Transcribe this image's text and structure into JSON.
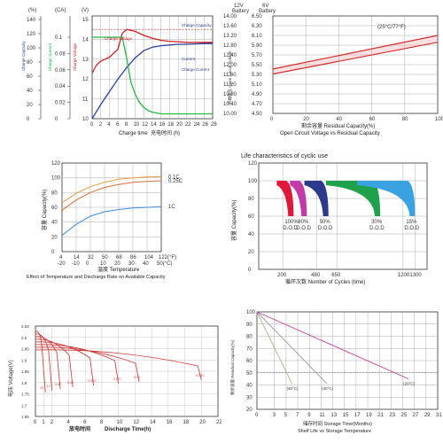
{
  "chart_data": [
    {
      "id": "charge",
      "type": "line",
      "x_ticks": [
        "0",
        "2",
        "4",
        "6",
        "8",
        "10",
        "12",
        "14",
        "16",
        "18",
        "20",
        "22",
        "24",
        "26",
        "28"
      ],
      "xlabel": "Charge time",
      "xlabel_cn": "充电时间 (h)",
      "units": [
        "(%)",
        "(CA)",
        "(V)"
      ],
      "y_pct_ticks": [
        "140",
        "120",
        "100",
        "80",
        "60",
        "40",
        "20",
        "0"
      ],
      "y_ca_ticks": [
        "0.1",
        "0.08",
        "0.06",
        "0.04",
        "0.02",
        "0"
      ],
      "y_v_ticks": [
        "15",
        "14",
        "13",
        "12",
        "11",
        "10"
      ],
      "side_labels": [
        "Charge Capacity",
        "Charge Current",
        "Charge Voltage"
      ],
      "annotations": [
        "Charge Capacity",
        "Charge Voltage",
        "Current",
        "Charge Current"
      ],
      "series": [
        {
          "color": "#2a3ea8",
          "x": [
            0,
            2,
            4,
            6,
            8,
            10,
            12,
            14,
            16,
            18,
            20,
            22,
            24,
            26,
            28
          ],
          "y": [
            0,
            20,
            38,
            56,
            72,
            86,
            96,
            101,
            103,
            104,
            105,
            105,
            105.5,
            106,
            106
          ]
        },
        {
          "color": "#cc2222",
          "x": [
            0,
            1,
            2,
            4,
            6,
            7,
            8,
            10,
            12,
            14,
            16,
            18,
            20,
            22,
            24,
            26,
            28
          ],
          "y": [
            12.3,
            12.7,
            12.9,
            13.1,
            13.5,
            14.3,
            14.5,
            14.4,
            14.2,
            14.05,
            13.95,
            13.9,
            13.88,
            13.85,
            13.85,
            13.85,
            13.85
          ]
        },
        {
          "color": "#22bb44",
          "x": [
            0,
            2,
            4,
            6,
            7,
            8,
            9,
            10,
            11,
            12,
            13,
            14,
            16,
            18,
            20,
            22,
            24,
            26,
            28
          ],
          "y": [
            0.1,
            0.1,
            0.1,
            0.1,
            0.1,
            0.075,
            0.045,
            0.03,
            0.02,
            0.014,
            0.01,
            0.008,
            0.006,
            0.006,
            0.006,
            0.006,
            0.006,
            0.006,
            0.006
          ]
        }
      ]
    },
    {
      "id": "ocv",
      "type": "line",
      "top_labels": [
        [
          "12V",
          "Battery"
        ],
        [
          "6V",
          "Battery"
        ]
      ],
      "y12_ticks": [
        "14.00",
        "13.60",
        "13.20",
        "12.80",
        "12.40",
        "12.00",
        "11.60",
        "11.20",
        "10.80",
        "10.40",
        "10.00"
      ],
      "y6_ticks": [
        "6.50",
        "6.30",
        "6.10",
        "5.90",
        "5.70",
        "5.50",
        "5.30",
        "5.10",
        "4.90",
        "4.70",
        "4.50"
      ],
      "x_ticks": [
        "0",
        "20",
        "40",
        "60",
        "80",
        "100"
      ],
      "ylabel": "开端电压 Open Circuit Voltage",
      "xlabel_1": "剩余容量  Residual Capacity(%)",
      "xlabel_2": "Open Circuit Voltage vs Residual Capacity",
      "annotation": "(25°C/77°F)",
      "series": [
        {
          "color": "#cc2222",
          "x": [
            0,
            100
          ],
          "y": [
            11.62,
            12.92
          ]
        },
        {
          "color": "#cc2222",
          "x": [
            0,
            100
          ],
          "y": [
            11.82,
            13.2
          ]
        }
      ]
    },
    {
      "id": "temperature",
      "type": "line",
      "y_ticks": [
        "120",
        "100",
        "80",
        "60",
        "40",
        "20",
        "0"
      ],
      "x_ticks_f": [
        "4",
        "14",
        "32",
        "50",
        "68",
        "86",
        "104",
        "122(°F)"
      ],
      "x_ticks_c": [
        "-20",
        "-10",
        "0",
        "10",
        "20",
        "30",
        "40",
        "50(°C)"
      ],
      "ylabel": "容量 Capacity(%)",
      "xlabel_cn": "温度 Temperature",
      "caption": "Effect of Temperature and Discharge Rate on Available Capacity",
      "series": [
        {
          "name": "0.1C",
          "color": "#e89a40",
          "x": [
            -20,
            -10,
            0,
            10,
            20,
            30,
            40,
            50
          ],
          "y": [
            66,
            79,
            88,
            94,
            98,
            100,
            101,
            101.5
          ]
        },
        {
          "name": "0.25C",
          "color": "#d8703a",
          "x": [
            -20,
            -10,
            0,
            10,
            20,
            30,
            40,
            50
          ],
          "y": [
            56,
            70,
            80,
            87,
            91,
            94,
            95,
            96
          ]
        },
        {
          "name": "1C",
          "color": "#3e8edb",
          "x": [
            -20,
            -10,
            0,
            10,
            20,
            30,
            40,
            50
          ],
          "y": [
            22,
            37,
            48,
            54,
            57,
            59,
            60,
            61
          ]
        }
      ]
    },
    {
      "id": "cycles",
      "type": "area",
      "title": "Life characteristics of cyclic use",
      "y_ticks": [
        "120",
        "100",
        "80",
        "60",
        "40",
        "20",
        "0"
      ],
      "x_ticks": [
        "200",
        "480",
        "650",
        "1200",
        "1300"
      ],
      "ylabel": "容量 Capacity(%)",
      "xlabel": "循环次数 Number of Cycles (time)",
      "bands": [
        {
          "pct": "100%",
          "dod": "D.O.D",
          "color": "#e0193a",
          "start": 150,
          "end": 290
        },
        {
          "pct": "80%",
          "dod": "D.O.D",
          "color": "#c33aa8",
          "start": 260,
          "end": 400
        },
        {
          "pct": "50%",
          "dod": "D.O.D",
          "color": "#2c3a8c",
          "start": 380,
          "end": 580
        },
        {
          "pct": "30%",
          "dod": "D.O.D",
          "color": "#1fa04a",
          "start": 560,
          "end": 1010
        },
        {
          "pct": "15%",
          "dod": "D.O.D",
          "color": "#3aa2e0",
          "start": 820,
          "end": 1300
        }
      ]
    },
    {
      "id": "discharge",
      "type": "line",
      "y_ticks": [
        "2.03",
        "2.0",
        "1.95",
        "1.9",
        "1.85",
        "1.8",
        "1.75",
        "1.7",
        "1.65"
      ],
      "x_ticks": [
        "0",
        "1",
        "2",
        "4",
        "6",
        "8",
        "10",
        "12",
        "14",
        "16",
        "18",
        "20",
        "22"
      ],
      "ylabel": "电压 Voltage(V)",
      "xlabel_cn": "放电时间",
      "xlabel_en": "Discharge Time(h)",
      "series": [
        {
          "color": "#cc3333",
          "end": 1.2
        },
        {
          "color": "#cc3333",
          "end": 2.0
        },
        {
          "color": "#cc3333",
          "end": 3.0
        },
        {
          "color": "#cc3333",
          "end": 4.5
        },
        {
          "color": "#cc3333",
          "end": 7.0
        },
        {
          "color": "#cc3333",
          "end": 10.0
        },
        {
          "color": "#cc3333",
          "end": 12.5
        },
        {
          "color": "#cc3333",
          "end": 20.0
        }
      ],
      "curve_labels": [
        "2C",
        "1C",
        "0.6C",
        "0.4C",
        "0.25C",
        "0.17C",
        "0.1C",
        "0.05C"
      ]
    },
    {
      "id": "shelf",
      "type": "line",
      "y_ticks": [
        "100",
        "90",
        "80",
        "70",
        "60",
        "50",
        "40",
        "30",
        "20"
      ],
      "x_ticks": [
        "0",
        "3",
        "5",
        "7",
        "9",
        "11",
        "13",
        "15",
        "17",
        "19",
        "21",
        "23",
        "25",
        "27",
        "29",
        "31"
      ],
      "ylabel": "剩余容量 Residual Capacity(%)",
      "xlabel_1": "储存时间 Storage Time(Months)",
      "xlabel_2": "Shelf Life vs Storage Temperature",
      "series": [
        {
          "name": "(40°C)",
          "color": "#c9a88a",
          "x": [
            0,
            6
          ],
          "y": [
            100,
            41
          ]
        },
        {
          "name": "(30°C)",
          "color": "#9a9aa8",
          "x": [
            0,
            12
          ],
          "y": [
            100,
            41
          ]
        },
        {
          "name": "(20°C)",
          "color": "#c040a0",
          "x": [
            0,
            26
          ],
          "y": [
            100,
            45
          ]
        }
      ]
    }
  ]
}
